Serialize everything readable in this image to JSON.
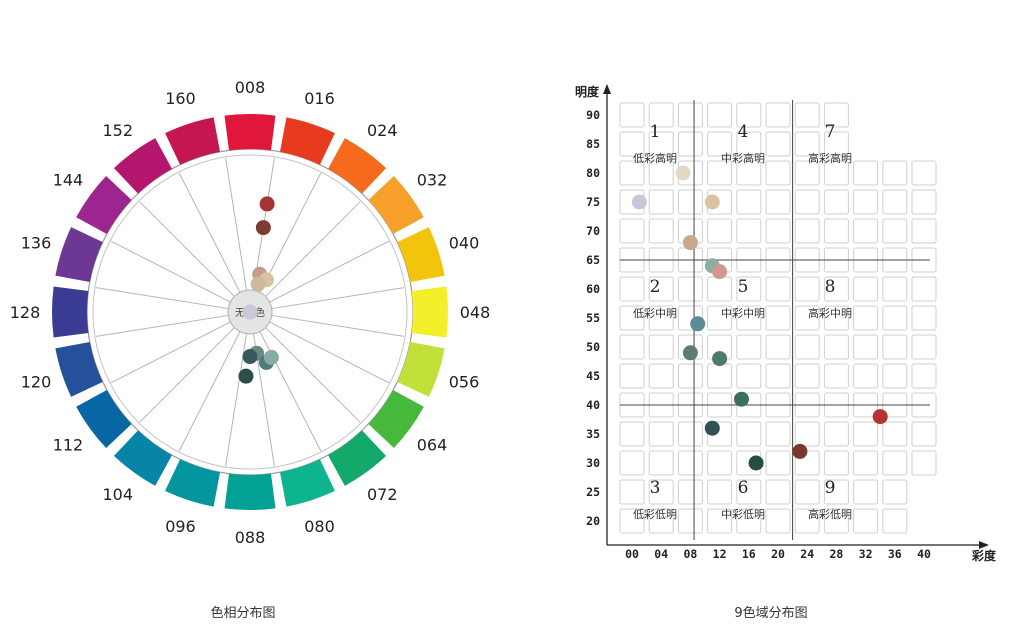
{
  "captions": {
    "hue_chart": "色相分布图",
    "zone_chart": "9色域分布图"
  },
  "chart_data": [
    {
      "type": "scatter",
      "subtype": "polar-hue-wheel",
      "center_label": "无彩色",
      "hue_labels": [
        "008",
        "016",
        "024",
        "032",
        "040",
        "048",
        "056",
        "064",
        "072",
        "080",
        "088",
        "096",
        "104",
        "112",
        "120",
        "128",
        "136",
        "144",
        "152",
        "160"
      ],
      "segment_colors": [
        "#e0163a",
        "#e83a1f",
        "#f56a1c",
        "#f7a12c",
        "#f2c40c",
        "#f3ef2a",
        "#c2e03a",
        "#46b83c",
        "#14a86a",
        "#0db48f",
        "#03a196",
        "#04959f",
        "#0685a8",
        "#0866a5",
        "#25519c",
        "#3a3c94",
        "#6c3795",
        "#9d2590",
        "#b5166d",
        "#c61650"
      ],
      "points": [
        {
          "hue_index": 0.5,
          "ring": 0.62,
          "color": "#a63236"
        },
        {
          "hue_index": 0.5,
          "ring": 0.45,
          "color": "#7e3a32"
        },
        {
          "hue_index": 0.8,
          "ring": 0.12,
          "color": "#c79c8a"
        },
        {
          "hue_index": 1.5,
          "ring": 0.1,
          "color": "#d6c3a0"
        },
        {
          "hue_index": 0.9,
          "ring": 0.05,
          "color": "#ccb99a"
        },
        {
          "hue_index": 9.5,
          "ring": 0.14,
          "color": "#6d8886"
        },
        {
          "hue_index": 10.0,
          "ring": 0.16,
          "color": "#385a5e"
        },
        {
          "hue_index": 9.0,
          "ring": 0.22,
          "color": "#4f7c77"
        },
        {
          "hue_index": 8.6,
          "ring": 0.2,
          "color": "#85ada4"
        },
        {
          "hue_index": 10.2,
          "ring": 0.3,
          "color": "#2a4e4c"
        },
        {
          "hue_index": 0,
          "ring": 0,
          "color": "#c8c8d8"
        }
      ]
    },
    {
      "type": "scatter",
      "subtype": "nine-zone-grid",
      "xlabel": "彩度",
      "ylabel": "明度",
      "x_ticks": [
        "00",
        "04",
        "08",
        "12",
        "16",
        "20",
        "24",
        "28",
        "32",
        "36",
        "40"
      ],
      "y_ticks": [
        "90",
        "85",
        "80",
        "75",
        "70",
        "65",
        "60",
        "55",
        "50",
        "45",
        "40",
        "35",
        "30",
        "25",
        "20"
      ],
      "xlim": [
        0,
        42
      ],
      "ylim": [
        18,
        92
      ],
      "x_dividers": [
        8.5,
        22
      ],
      "y_dividers": [
        65,
        40
      ],
      "zones": [
        {
          "number": "1",
          "label": "低彩高明"
        },
        {
          "number": "4",
          "label": "中彩高明"
        },
        {
          "number": "7",
          "label": "高彩高明"
        },
        {
          "number": "2",
          "label": "低彩中明"
        },
        {
          "number": "5",
          "label": "中彩中明"
        },
        {
          "number": "8",
          "label": "高彩中明"
        },
        {
          "number": "3",
          "label": "低彩低明"
        },
        {
          "number": "6",
          "label": "中彩低明"
        },
        {
          "number": "9",
          "label": "高彩低明"
        }
      ],
      "points": [
        {
          "x": 1,
          "y": 75,
          "color": "#c6c7da"
        },
        {
          "x": 7,
          "y": 80,
          "color": "#e3d8c6"
        },
        {
          "x": 11,
          "y": 75,
          "color": "#d8c4a2"
        },
        {
          "x": 8,
          "y": 68,
          "color": "#c6a88a"
        },
        {
          "x": 11,
          "y": 64,
          "color": "#89b0a7"
        },
        {
          "x": 12,
          "y": 63,
          "color": "#d4988a"
        },
        {
          "x": 9,
          "y": 54,
          "color": "#5b8c94"
        },
        {
          "x": 8,
          "y": 49,
          "color": "#5f7c72"
        },
        {
          "x": 12,
          "y": 48,
          "color": "#4e7a6f"
        },
        {
          "x": 15,
          "y": 41,
          "color": "#3b7060"
        },
        {
          "x": 11,
          "y": 36,
          "color": "#2f5157"
        },
        {
          "x": 17,
          "y": 30,
          "color": "#234d45"
        },
        {
          "x": 23,
          "y": 32,
          "color": "#7c3632"
        },
        {
          "x": 34,
          "y": 38,
          "color": "#b43433"
        }
      ]
    }
  ]
}
